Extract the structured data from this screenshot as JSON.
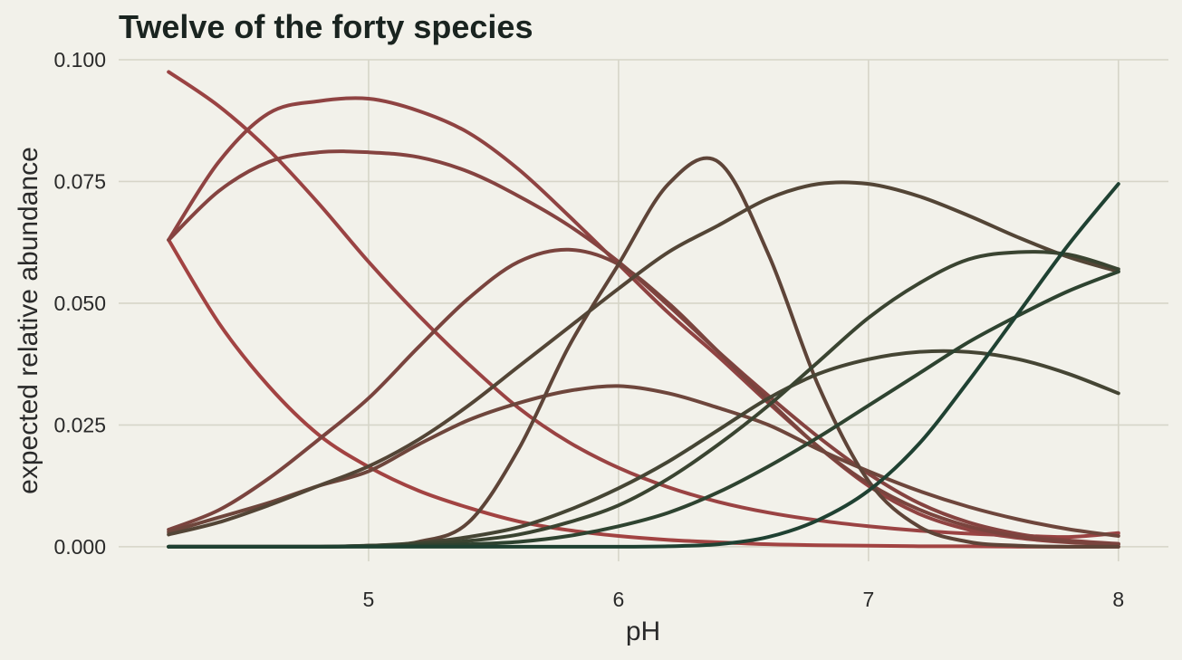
{
  "chart_data": {
    "type": "line",
    "title": "Twelve of the forty species",
    "xlabel": "pH",
    "ylabel": "expected relative abundance",
    "xlim": [
      4.0,
      8.2
    ],
    "ylim": [
      -0.003,
      0.1
    ],
    "x_ticks": [
      5,
      6,
      7,
      8
    ],
    "x_tick_labels": [
      "5",
      "6",
      "7",
      "8"
    ],
    "y_ticks": [
      0.0,
      0.025,
      0.05,
      0.075,
      0.1
    ],
    "y_tick_labels": [
      "0.000",
      "0.025",
      "0.050",
      "0.075",
      "0.100"
    ],
    "grid": true,
    "legend": "none",
    "x": [
      4.2,
      4.4,
      4.6,
      4.8,
      5.0,
      5.2,
      5.4,
      5.6,
      5.8,
      6.0,
      6.2,
      6.4,
      6.6,
      6.8,
      7.0,
      7.2,
      7.4,
      7.6,
      7.8,
      8.0
    ],
    "series": [
      {
        "color": "#a24342",
        "values": [
          0.063,
          0.046,
          0.033,
          0.023,
          0.0164,
          0.0115,
          0.008,
          0.0052,
          0.0034,
          0.0022,
          0.0014,
          0.0009,
          0.0005,
          0.0003,
          0.0002,
          0.0001,
          0.0001,
          0.0,
          0.0,
          0.0
        ]
      },
      {
        "color": "#9a4343",
        "values": [
          0.0975,
          0.0905,
          0.0815,
          0.0705,
          0.0585,
          0.0475,
          0.0375,
          0.0285,
          0.0215,
          0.0162,
          0.0122,
          0.0092,
          0.007,
          0.0054,
          0.0042,
          0.0033,
          0.0027,
          0.0023,
          0.002,
          0.0028
        ]
      },
      {
        "color": "#8f4342",
        "values": [
          0.063,
          0.079,
          0.089,
          0.0915,
          0.092,
          0.0895,
          0.085,
          0.0775,
          0.068,
          0.058,
          0.048,
          0.039,
          0.0295,
          0.0205,
          0.0125,
          0.0068,
          0.0035,
          0.0018,
          0.0009,
          0.0005
        ]
      },
      {
        "color": "#854340",
        "values": [
          0.063,
          0.073,
          0.079,
          0.081,
          0.081,
          0.08,
          0.077,
          0.072,
          0.066,
          0.0585,
          0.0495,
          0.04,
          0.031,
          0.0225,
          0.015,
          0.009,
          0.005,
          0.0026,
          0.0013,
          0.0006
        ]
      },
      {
        "color": "#7a443e",
        "values": [
          0.0035,
          0.0075,
          0.014,
          0.022,
          0.0305,
          0.041,
          0.051,
          0.0585,
          0.061,
          0.058,
          0.05,
          0.04,
          0.03,
          0.0205,
          0.013,
          0.0077,
          0.0042,
          0.0021,
          0.001,
          0.0005
        ]
      },
      {
        "color": "#6e463c",
        "values": [
          0.003,
          0.006,
          0.009,
          0.0125,
          0.0155,
          0.021,
          0.026,
          0.0295,
          0.032,
          0.033,
          0.0315,
          0.0285,
          0.025,
          0.02,
          0.0155,
          0.0115,
          0.0082,
          0.0056,
          0.0036,
          0.0022
        ]
      },
      {
        "color": "#5e4438",
        "values": [
          0.0,
          0.0,
          0.0,
          0.0,
          0.0002,
          0.001,
          0.005,
          0.02,
          0.041,
          0.058,
          0.0745,
          0.079,
          0.06,
          0.033,
          0.0135,
          0.0042,
          0.001,
          0.0002,
          0.0,
          0.0
        ]
      },
      {
        "color": "#534536",
        "values": [
          0.0025,
          0.005,
          0.0085,
          0.0125,
          0.0165,
          0.022,
          0.029,
          0.037,
          0.045,
          0.053,
          0.0605,
          0.066,
          0.0715,
          0.0745,
          0.0745,
          0.072,
          0.068,
          0.0635,
          0.0595,
          0.0565
        ]
      },
      {
        "color": "#454534",
        "values": [
          0.0,
          0.0,
          0.0,
          0.0,
          0.0002,
          0.0008,
          0.002,
          0.004,
          0.0075,
          0.012,
          0.0175,
          0.024,
          0.0305,
          0.0355,
          0.0385,
          0.04,
          0.04,
          0.0385,
          0.0355,
          0.0315
        ]
      },
      {
        "color": "#3a4431",
        "values": [
          0.0,
          0.0,
          0.0,
          0.0,
          0.0002,
          0.0005,
          0.0012,
          0.0025,
          0.005,
          0.0085,
          0.014,
          0.021,
          0.029,
          0.038,
          0.047,
          0.054,
          0.059,
          0.0605,
          0.06,
          0.057
        ]
      },
      {
        "color": "#2e4330",
        "values": [
          0.0,
          0.0,
          0.0,
          0.0,
          0.0001,
          0.0002,
          0.0005,
          0.001,
          0.0022,
          0.0042,
          0.007,
          0.0112,
          0.0165,
          0.0225,
          0.029,
          0.0355,
          0.042,
          0.0475,
          0.0525,
          0.0565
        ]
      },
      {
        "color": "#1f4132",
        "values": [
          0.0,
          0.0,
          0.0,
          0.0,
          0.0,
          0.0,
          0.0,
          0.0,
          0.0,
          0.0,
          0.0001,
          0.0005,
          0.002,
          0.0055,
          0.0115,
          0.021,
          0.034,
          0.048,
          0.062,
          0.0745
        ]
      }
    ]
  }
}
